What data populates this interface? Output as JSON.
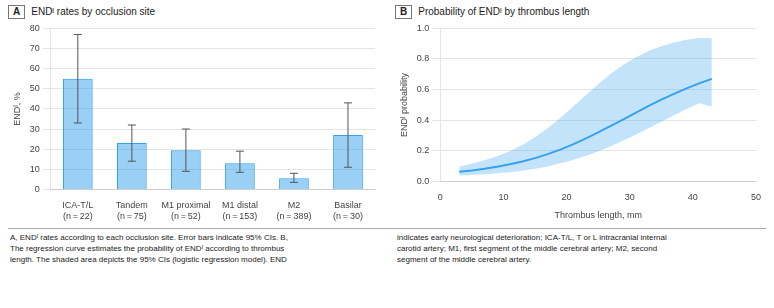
{
  "chart_data": [
    {
      "type": "bar",
      "title": "ENDᴵ rates by occlusion site",
      "ylabel": "ENDᴵ, %",
      "categories": [
        "ICA-T/L\n(n = 22)",
        "Tandem\n(n = 75)",
        "M1 proximal\n(n = 52)",
        "M1 distal\n(n = 153)",
        "M2\n(n = 389)",
        "Basilar\n(n = 30)"
      ],
      "values": [
        55.0,
        23.0,
        19.5,
        13.0,
        5.5,
        27.0
      ],
      "ci_lower": [
        33.0,
        14.0,
        9.0,
        8.5,
        3.5,
        11.0
      ],
      "ci_upper": [
        77.0,
        32.0,
        30.0,
        19.0,
        8.0,
        43.0
      ],
      "ylim": [
        0,
        80
      ],
      "yticks": [
        0,
        10,
        20,
        30,
        40,
        50,
        60,
        70,
        80
      ],
      "grid": "y",
      "annotations": [
        "A",
        "A, ENDᴵ rates according to each occlusion site. Error bars indicate 95% CIs. B,\nThe regression curve estimates the probability of ENDᴵ according to thrombus\nlength. The shaded area depicts the 95% CIs (logistic regression model). END"
      ]
    },
    {
      "type": "line",
      "title": "Probability of ENDᴵ by thrombus length",
      "xlabel": "Thrombus length, mm",
      "ylabel": "ENDᴵ probability",
      "x": [
        3,
        5,
        7,
        9,
        11,
        13,
        15,
        17,
        19,
        21,
        23,
        25,
        27,
        29,
        31,
        33,
        35,
        37,
        39,
        41,
        43
      ],
      "values": [
        0.063,
        0.072,
        0.083,
        0.096,
        0.112,
        0.13,
        0.152,
        0.178,
        0.208,
        0.242,
        0.28,
        0.32,
        0.363,
        0.406,
        0.45,
        0.493,
        0.534,
        0.572,
        0.608,
        0.641,
        0.67
      ],
      "ci_lower": [
        0.038,
        0.042,
        0.047,
        0.053,
        0.06,
        0.07,
        0.082,
        0.098,
        0.118,
        0.14,
        0.166,
        0.196,
        0.23,
        0.267,
        0.306,
        0.347,
        0.39,
        0.433,
        0.474,
        0.51,
        0.49
      ],
      "ci_upper": [
        0.098,
        0.115,
        0.138,
        0.165,
        0.197,
        0.238,
        0.288,
        0.348,
        0.415,
        0.488,
        0.562,
        0.635,
        0.703,
        0.762,
        0.812,
        0.852,
        0.884,
        0.908,
        0.926,
        0.938,
        0.935
      ],
      "xlim": [
        0,
        50
      ],
      "ylim": [
        0,
        1.0
      ],
      "xticks": [
        0,
        10,
        20,
        30,
        40,
        50
      ],
      "yticks": [
        {
          "value": 0.0,
          "label": "0.0"
        },
        0.2,
        0.4,
        0.6,
        0.8,
        {
          "value": 1.0,
          "label": "1.0"
        }
      ],
      "grid": "y",
      "annotations": [
        "B",
        "indicates early neurological deterioration; ICA-T/L, T or L intracranial internal\ncarotid artery; M1, first segment of the middle cerebral artery; M2, second\nsegment of the middle cerebral artery."
      ]
    }
  ]
}
